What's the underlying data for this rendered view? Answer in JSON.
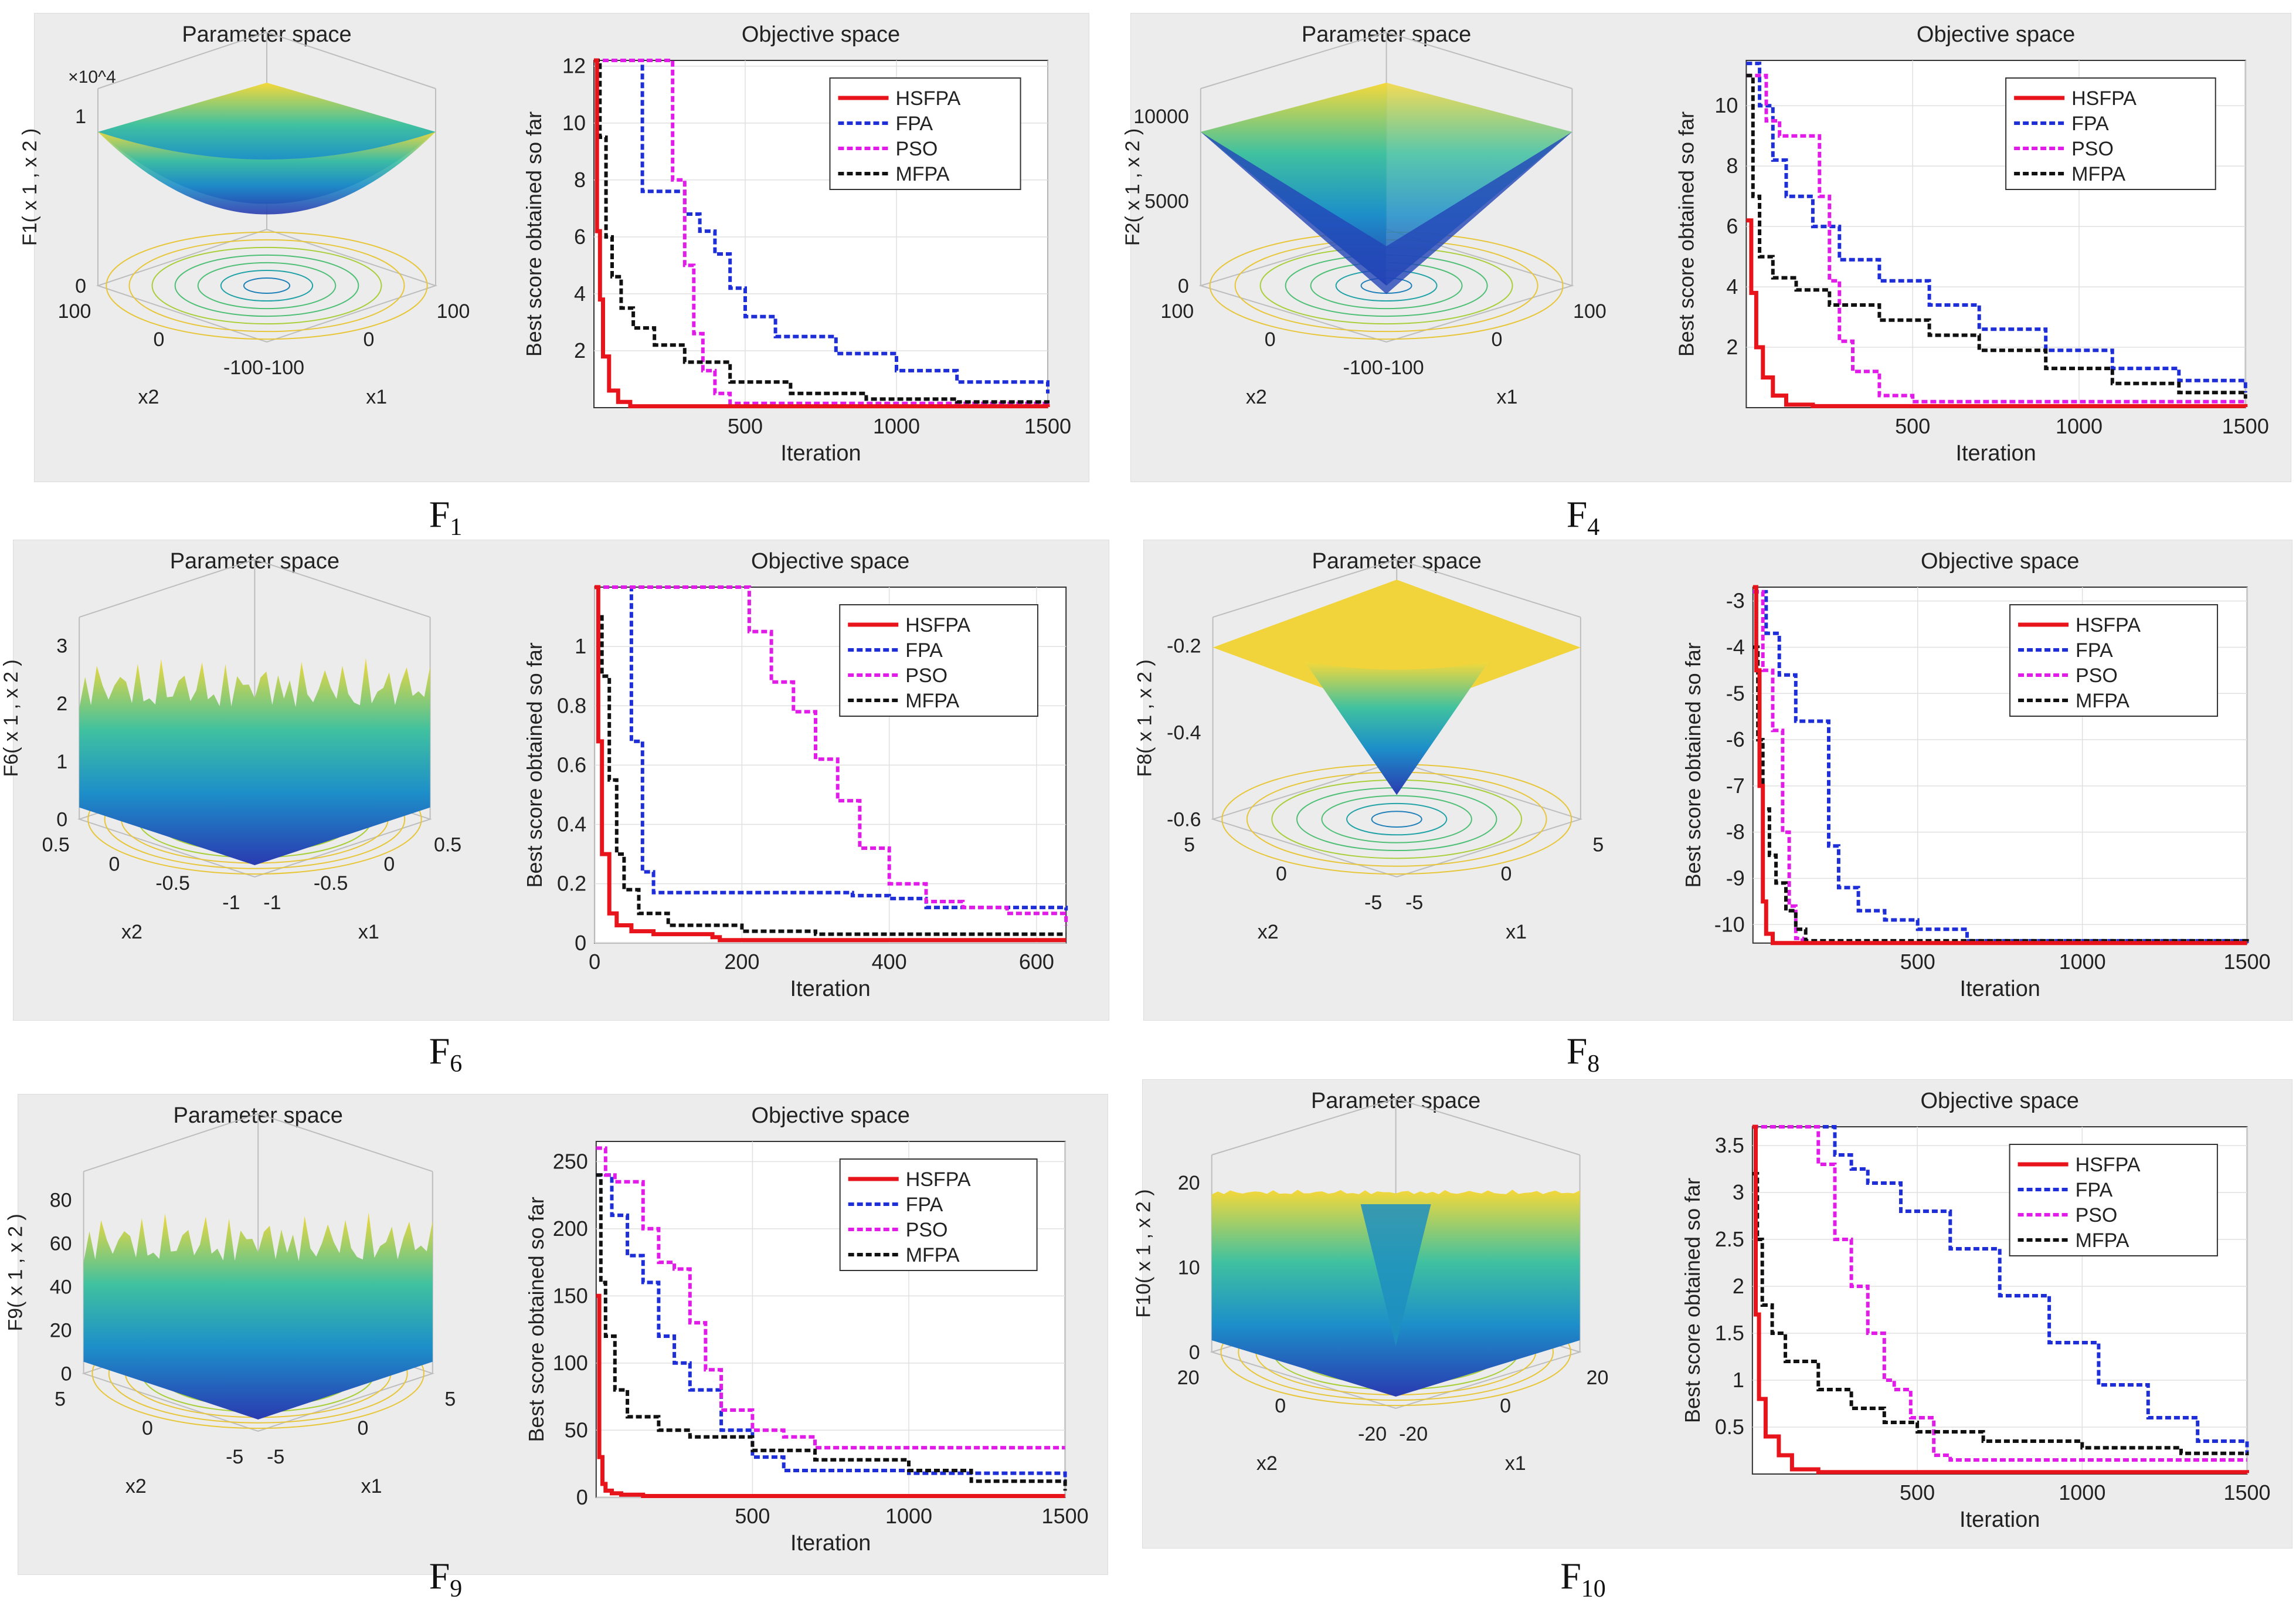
{
  "legend_labels": [
    "HSFPA",
    "FPA",
    "PSO",
    "MFPA"
  ],
  "colors": {
    "HSFPA": "#e8141b",
    "FPA": "#1e2fd8",
    "PSO": "#e21ce8",
    "MFPA": "#111111"
  },
  "chart_data": [
    {
      "id": "F1",
      "caption_main": "F",
      "caption_sub": "1",
      "param": {
        "title": "Parameter space",
        "zlabel": "F1( x 1 , x 2 )",
        "scale": "×10^4",
        "zticks": [
          "0",
          "1"
        ],
        "x1ticks": [
          "-100",
          "0",
          "100"
        ],
        "x2ticks": [
          "-100",
          "0",
          "100"
        ],
        "x1label": "x1",
        "x2label": "x2",
        "shape": "bowl"
      },
      "type": "line",
      "title": "Objective space",
      "xlabel": "Iteration",
      "ylabel": "Best score obtained so far",
      "xlim": [
        0,
        1500
      ],
      "ylim": [
        0,
        12.2
      ],
      "xticks": [
        500,
        1000,
        1500
      ],
      "yticks": [
        2,
        4,
        6,
        8,
        10,
        12
      ],
      "series": [
        {
          "name": "HSFPA",
          "x": [
            0,
            10,
            20,
            30,
            50,
            80,
            120,
            1500
          ],
          "y": [
            12.2,
            6.2,
            3.8,
            1.8,
            0.6,
            0.2,
            0.05,
            0.02
          ]
        },
        {
          "name": "FPA",
          "x": [
            0,
            150,
            160,
            300,
            350,
            400,
            450,
            500,
            600,
            800,
            1000,
            1200,
            1500
          ],
          "y": [
            12.2,
            12.2,
            7.6,
            6.8,
            6.2,
            5.4,
            4.2,
            3.2,
            2.5,
            1.9,
            1.3,
            0.9,
            0.5
          ]
        },
        {
          "name": "PSO",
          "x": [
            0,
            40,
            240,
            260,
            300,
            330,
            360,
            400,
            450,
            1500
          ],
          "y": [
            12.2,
            12.2,
            12.2,
            8.0,
            5.0,
            2.6,
            1.3,
            0.5,
            0.15,
            0.1
          ]
        },
        {
          "name": "MFPA",
          "x": [
            0,
            20,
            40,
            60,
            90,
            130,
            200,
            300,
            450,
            650,
            900,
            1200,
            1500
          ],
          "y": [
            12.2,
            9.5,
            6.0,
            4.6,
            3.5,
            2.8,
            2.2,
            1.6,
            0.9,
            0.5,
            0.3,
            0.2,
            0.15
          ]
        }
      ]
    },
    {
      "id": "F4",
      "caption_main": "F",
      "caption_sub": "4",
      "param": {
        "title": "Parameter space",
        "zlabel": "F2( x 1 , x 2 )",
        "scale": "",
        "zticks": [
          "0",
          "5000",
          "10000"
        ],
        "x1ticks": [
          "-100",
          "0",
          "100"
        ],
        "x2ticks": [
          "-100",
          "0",
          "100"
        ],
        "x1label": "x1",
        "x2label": "x2",
        "shape": "pyramid"
      },
      "type": "line",
      "title": "Objective space",
      "xlabel": "Iteration",
      "ylabel": "Best score obtained so far",
      "xlim": [
        0,
        1500
      ],
      "ylim": [
        0,
        11.5
      ],
      "xticks": [
        500,
        1000,
        1500
      ],
      "yticks": [
        2,
        4,
        6,
        8,
        10
      ],
      "series": [
        {
          "name": "HSFPA",
          "x": [
            0,
            15,
            30,
            50,
            80,
            120,
            200,
            1500
          ],
          "y": [
            6.2,
            3.8,
            2.0,
            1.0,
            0.4,
            0.1,
            0.05,
            0.02
          ]
        },
        {
          "name": "FPA",
          "x": [
            0,
            40,
            80,
            120,
            200,
            280,
            400,
            550,
            700,
            900,
            1100,
            1300,
            1500
          ],
          "y": [
            11.4,
            10.0,
            8.2,
            7.0,
            6.0,
            4.9,
            4.2,
            3.4,
            2.6,
            1.9,
            1.3,
            0.9,
            0.5
          ]
        },
        {
          "name": "PSO",
          "x": [
            0,
            60,
            100,
            200,
            220,
            250,
            280,
            320,
            400,
            500,
            1500
          ],
          "y": [
            11.0,
            9.5,
            9.0,
            9.0,
            7.0,
            4.2,
            2.2,
            1.2,
            0.4,
            0.2,
            0.2
          ]
        },
        {
          "name": "MFPA",
          "x": [
            0,
            20,
            40,
            80,
            150,
            250,
            400,
            550,
            700,
            900,
            1100,
            1300,
            1500
          ],
          "y": [
            11.0,
            7.0,
            5.0,
            4.3,
            3.9,
            3.4,
            2.9,
            2.4,
            1.9,
            1.3,
            0.8,
            0.5,
            0.3
          ]
        }
      ]
    },
    {
      "id": "F6",
      "caption_main": "F",
      "caption_sub": "6",
      "param": {
        "title": "Parameter space",
        "zlabel": "F6( x 1 , x 2 )",
        "scale": "",
        "zticks": [
          "0",
          "1",
          "2",
          "3"
        ],
        "x1ticks": [
          "-1",
          "-0.5",
          "0",
          "0.5"
        ],
        "x2ticks": [
          "-1",
          "-0.5",
          "0",
          "0.5"
        ],
        "x1label": "x1",
        "x2label": "x2",
        "shape": "noisy"
      },
      "type": "line",
      "title": "Objective space",
      "xlabel": "Iteration",
      "ylabel": "Best score obtained so far",
      "xlim": [
        0,
        640
      ],
      "ylim": [
        0,
        1.2
      ],
      "xticks": [
        0,
        200,
        400,
        600
      ],
      "yticks": [
        0,
        0.2,
        0.4,
        0.6,
        0.8,
        1
      ],
      "series": [
        {
          "name": "HSFPA",
          "x": [
            0,
            5,
            10,
            20,
            30,
            50,
            80,
            160,
            170,
            640
          ],
          "y": [
            1.2,
            0.68,
            0.3,
            0.1,
            0.06,
            0.04,
            0.03,
            0.02,
            0.01,
            0.01
          ]
        },
        {
          "name": "FPA",
          "x": [
            0,
            40,
            50,
            65,
            80,
            100,
            350,
            400,
            450,
            640
          ],
          "y": [
            1.2,
            1.2,
            0.68,
            0.24,
            0.17,
            0.17,
            0.16,
            0.15,
            0.12,
            0.11
          ]
        },
        {
          "name": "PSO",
          "x": [
            0,
            190,
            210,
            240,
            270,
            300,
            330,
            360,
            400,
            450,
            500,
            560,
            640
          ],
          "y": [
            1.2,
            1.2,
            1.05,
            0.88,
            0.78,
            0.62,
            0.48,
            0.32,
            0.2,
            0.14,
            0.12,
            0.1,
            0.06
          ]
        },
        {
          "name": "MFPA",
          "x": [
            0,
            5,
            10,
            20,
            30,
            40,
            60,
            100,
            200,
            300,
            640
          ],
          "y": [
            1.2,
            1.1,
            0.9,
            0.55,
            0.3,
            0.18,
            0.1,
            0.06,
            0.04,
            0.03,
            0.03
          ]
        }
      ]
    },
    {
      "id": "F8",
      "caption_main": "F",
      "caption_sub": "8",
      "param": {
        "title": "Parameter space",
        "zlabel": "F8( x 1 , x 2 )",
        "scale": "",
        "zticks": [
          "-0.6",
          "-0.4",
          "-0.2"
        ],
        "x1ticks": [
          "-5",
          "0",
          "5"
        ],
        "x2ticks": [
          "-5",
          "0",
          "5"
        ],
        "x1label": "x1",
        "x2label": "x2",
        "shape": "funnel"
      },
      "type": "line",
      "title": "Objective space",
      "xlabel": "Iteration",
      "ylabel": "Best score obtained so far",
      "xlim": [
        0,
        1500
      ],
      "ylim": [
        -10.4,
        -2.7
      ],
      "xticks": [
        500,
        1000,
        1500
      ],
      "yticks": [
        -10,
        -9,
        -8,
        -7,
        -6,
        -5,
        -4,
        -3
      ],
      "series": [
        {
          "name": "HSFPA",
          "x": [
            0,
            10,
            20,
            30,
            40,
            60,
            1500
          ],
          "y": [
            -2.7,
            -4.5,
            -7.0,
            -9.5,
            -10.2,
            -10.4,
            -10.4
          ]
        },
        {
          "name": "FPA",
          "x": [
            0,
            40,
            80,
            130,
            200,
            230,
            260,
            320,
            400,
            500,
            650,
            1500
          ],
          "y": [
            -2.8,
            -3.7,
            -4.6,
            -5.6,
            -5.6,
            -8.3,
            -9.2,
            -9.7,
            -9.9,
            -10.1,
            -10.35,
            -10.4
          ]
        },
        {
          "name": "PSO",
          "x": [
            0,
            30,
            60,
            90,
            110,
            130,
            150,
            1500
          ],
          "y": [
            -2.8,
            -4.5,
            -5.8,
            -8.0,
            -9.6,
            -10.3,
            -10.4,
            -10.4
          ]
        },
        {
          "name": "MFPA",
          "x": [
            0,
            15,
            30,
            50,
            70,
            100,
            130,
            160,
            1500
          ],
          "y": [
            -4.0,
            -6.0,
            -7.5,
            -8.5,
            -9.1,
            -9.7,
            -10.1,
            -10.35,
            -10.4
          ]
        }
      ]
    },
    {
      "id": "F9",
      "caption_main": "F",
      "caption_sub": "9",
      "param": {
        "title": "Parameter space",
        "zlabel": "F9( x 1 , x 2 )",
        "scale": "",
        "zticks": [
          "0",
          "20",
          "40",
          "60",
          "80"
        ],
        "x1ticks": [
          "-5",
          "0",
          "5"
        ],
        "x2ticks": [
          "-5",
          "0",
          "5"
        ],
        "x1label": "x1",
        "x2label": "x2",
        "shape": "egg"
      },
      "type": "line",
      "title": "Objective space",
      "xlabel": "Iteration",
      "ylabel": "Best score obtained so far",
      "xlim": [
        0,
        1500
      ],
      "ylim": [
        0,
        265
      ],
      "xticks": [
        500,
        1000,
        1500
      ],
      "yticks": [
        0,
        50,
        100,
        150,
        200,
        250
      ],
      "series": [
        {
          "name": "HSFPA",
          "x": [
            0,
            10,
            20,
            30,
            50,
            80,
            150,
            1500
          ],
          "y": [
            150,
            30,
            10,
            5,
            3,
            2,
            1,
            1
          ]
        },
        {
          "name": "FPA",
          "x": [
            0,
            50,
            100,
            150,
            200,
            250,
            300,
            400,
            500,
            600,
            1000,
            1500
          ],
          "y": [
            240,
            210,
            180,
            160,
            120,
            100,
            80,
            50,
            30,
            20,
            18,
            10
          ]
        },
        {
          "name": "PSO",
          "x": [
            0,
            30,
            60,
            150,
            200,
            250,
            300,
            350,
            400,
            500,
            600,
            700,
            1500
          ],
          "y": [
            260,
            240,
            235,
            200,
            175,
            170,
            130,
            95,
            65,
            50,
            45,
            37,
            37
          ]
        },
        {
          "name": "MFPA",
          "x": [
            0,
            15,
            30,
            60,
            100,
            200,
            300,
            500,
            700,
            1000,
            1200,
            1500
          ],
          "y": [
            240,
            160,
            120,
            80,
            60,
            50,
            45,
            35,
            28,
            20,
            12,
            5
          ]
        }
      ]
    },
    {
      "id": "F10",
      "caption_main": "F",
      "caption_sub": "10",
      "param": {
        "title": "Parameter space",
        "zlabel": "F10( x 1 , x 2 )",
        "scale": "",
        "zticks": [
          "0",
          "10",
          "20"
        ],
        "x1ticks": [
          "-20",
          "0",
          "20"
        ],
        "x2ticks": [
          "-20",
          "0",
          "20"
        ],
        "x1label": "x1",
        "x2label": "x2",
        "shape": "ackley"
      },
      "type": "line",
      "title": "Objective space",
      "xlabel": "Iteration",
      "ylabel": "Best score obtained so far",
      "xlim": [
        0,
        1500
      ],
      "ylim": [
        0,
        3.7
      ],
      "xticks": [
        500,
        1000,
        1500
      ],
      "yticks": [
        0.5,
        1,
        1.5,
        2,
        2.5,
        3,
        3.5
      ],
      "series": [
        {
          "name": "HSFPA",
          "x": [
            0,
            10,
            20,
            40,
            80,
            120,
            200,
            1500
          ],
          "y": [
            3.7,
            1.7,
            0.8,
            0.4,
            0.2,
            0.05,
            0.02,
            0.01
          ]
        },
        {
          "name": "FPA",
          "x": [
            0,
            200,
            250,
            300,
            350,
            450,
            600,
            750,
            900,
            1050,
            1200,
            1350,
            1500
          ],
          "y": [
            3.7,
            3.7,
            3.4,
            3.25,
            3.1,
            2.8,
            2.4,
            1.9,
            1.4,
            0.95,
            0.6,
            0.35,
            0.2
          ]
        },
        {
          "name": "PSO",
          "x": [
            0,
            180,
            200,
            250,
            300,
            350,
            400,
            430,
            480,
            550,
            600,
            1500
          ],
          "y": [
            3.7,
            3.7,
            3.3,
            2.5,
            2.0,
            1.5,
            1.0,
            0.9,
            0.6,
            0.2,
            0.15,
            0.15
          ]
        },
        {
          "name": "MFPA",
          "x": [
            0,
            15,
            30,
            60,
            100,
            200,
            300,
            400,
            500,
            700,
            1000,
            1300,
            1500
          ],
          "y": [
            3.2,
            2.5,
            1.8,
            1.5,
            1.2,
            0.9,
            0.7,
            0.55,
            0.45,
            0.35,
            0.28,
            0.22,
            0.2
          ]
        }
      ]
    }
  ]
}
